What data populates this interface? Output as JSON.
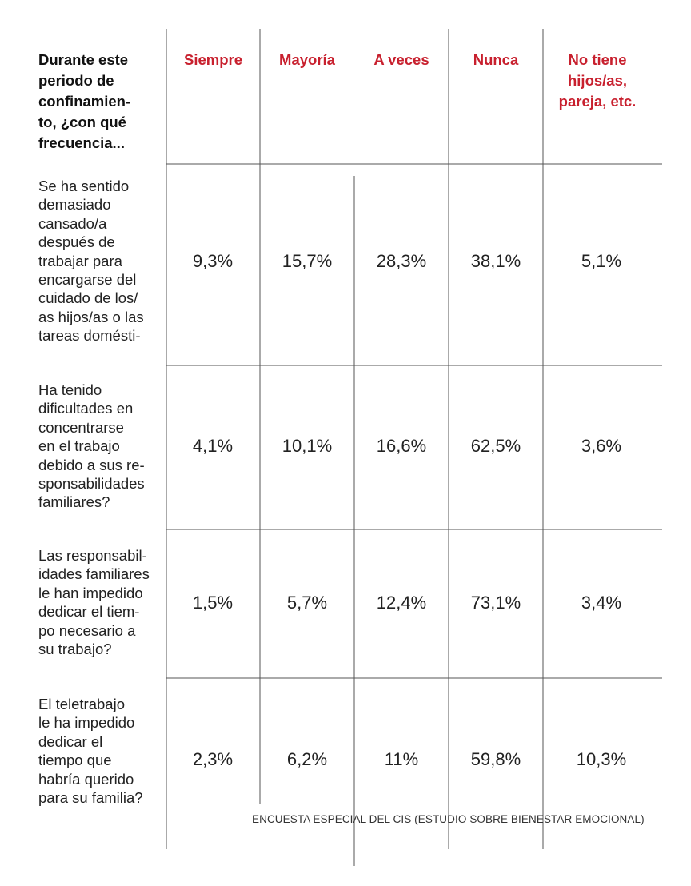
{
  "chart_data": {
    "type": "table",
    "header": "Durante este\nperiodo de\nconfinamien-\nto, ¿con qué\nfrecuencia...",
    "columns": [
      "Siempre",
      "Mayoría",
      "A veces",
      "Nunca",
      "No tiene\nhijos/as,\npareja, etc."
    ],
    "rows": [
      {
        "label": "Se ha sentido\ndemasiado\ncansado/a\ndespués de\ntrabajar para\nencargarse del\ncuidado de los/\nas hijos/as  o las\ntareas domésti-",
        "values": [
          "9,3%",
          "15,7%",
          "28,3%",
          "38,1%",
          "5,1%"
        ]
      },
      {
        "label": "Ha tenido\ndificultades en\nconcentrarse\nen el trabajo\ndebido a sus re-\nsponsabilidades\nfamiliares?",
        "values": [
          "4,1%",
          "10,1%",
          "16,6%",
          "62,5%",
          "3,6%"
        ]
      },
      {
        "label": "Las responsabil-\nidades familiares\nle han impedido\ndedicar el tiem-\npo necesario a\nsu trabajo?",
        "values": [
          "1,5%",
          "5,7%",
          "12,4%",
          "73,1%",
          "3,4%"
        ]
      },
      {
        "label": "El teletrabajo\nle ha impedido\ndedicar el\ntiempo que\nhabría querido\npara su familia?",
        "values": [
          "2,3%",
          "6,2%",
          "11%",
          "59,8%",
          "10,3%"
        ]
      }
    ],
    "source": "ENCUESTA ESPECIAL DEL CIS (ESTUDIO SOBRE BIENESTAR EMOCIONAL)",
    "colors": {
      "header_accent": "#c8202e",
      "text": "#222222",
      "rule": "#555555"
    }
  }
}
